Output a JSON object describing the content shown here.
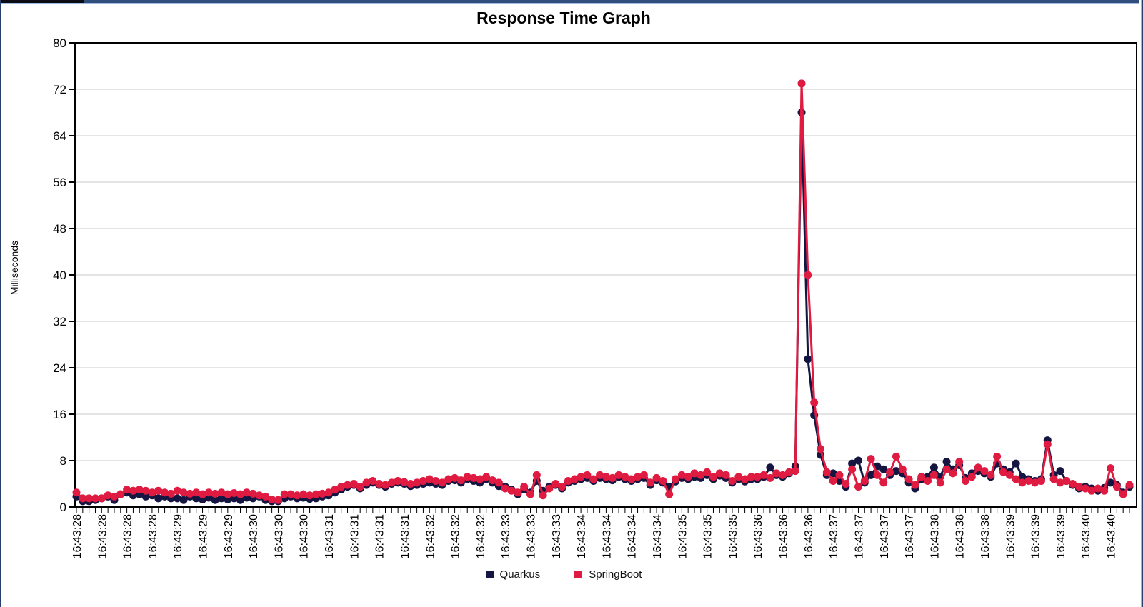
{
  "window": {
    "title": "Response Time Graph"
  },
  "chart_data": {
    "type": "line",
    "title": "Response Time Graph",
    "xlabel": "",
    "ylabel": "Milliseconds",
    "ylim": [
      0,
      80
    ],
    "ytick_step": 8,
    "grid": "horizontal",
    "legend_position": "bottom",
    "points_per_xlabel": 4,
    "x_tick_labels": [
      "16:43:28",
      "16:43:28",
      "16:43:28",
      "16:43:28",
      "16:43:29",
      "16:43:29",
      "16:43:29",
      "16:43:30",
      "16:43:30",
      "16:43:30",
      "16:43:31",
      "16:43:31",
      "16:43:31",
      "16:43:31",
      "16:43:32",
      "16:43:32",
      "16:43:32",
      "16:43:33",
      "16:43:33",
      "16:43:33",
      "16:43:34",
      "16:43:34",
      "16:43:34",
      "16:43:34",
      "16:43:35",
      "16:43:35",
      "16:43:35",
      "16:43:36",
      "16:43:36",
      "16:43:36",
      "16:43:37",
      "16:43:37",
      "16:43:37",
      "16:43:37",
      "16:43:38",
      "16:43:38",
      "16:43:38",
      "16:43:39",
      "16:43:39",
      "16:43:39",
      "16:43:40",
      "16:43:40"
    ],
    "series": [
      {
        "name": "Quarkus",
        "color": "#151542",
        "values": [
          1.8,
          1,
          1,
          1.2,
          1.5,
          1.8,
          1.2,
          2.2,
          2.5,
          2,
          2.2,
          1.8,
          2,
          1.5,
          1.8,
          1.5,
          1.5,
          1.2,
          1.8,
          1.5,
          1.3,
          1.6,
          1.2,
          1.5,
          1.3,
          1.5,
          1.2,
          1.6,
          1.5,
          1.8,
          1.2,
          1,
          1,
          1.5,
          1.8,
          1.5,
          1.6,
          1.4,
          1.5,
          1.8,
          2,
          2.5,
          3,
          3.5,
          3.8,
          3.2,
          3.8,
          4.2,
          3.8,
          3.5,
          4,
          4.2,
          4,
          3.6,
          3.8,
          4,
          4.2,
          4,
          3.8,
          4.5,
          4.6,
          4.2,
          4.8,
          4.5,
          4.2,
          4.8,
          4.2,
          3.6,
          3.5,
          3,
          2.2,
          3,
          2.5,
          4.5,
          2.8,
          3.5,
          3.8,
          3.2,
          4.2,
          4.5,
          4.8,
          5,
          4.5,
          5,
          4.8,
          4.6,
          5.2,
          4.8,
          4.5,
          4.8,
          5,
          3.8,
          4.6,
          4.2,
          3.5,
          4.4,
          5,
          4.8,
          5.2,
          5,
          5.5,
          4.8,
          5.4,
          5,
          4.2,
          4.8,
          4.4,
          4.8,
          4.8,
          5.2,
          6.8,
          5.5,
          5.2,
          5.8,
          7,
          68,
          25.5,
          15.8,
          9,
          5.5,
          5.8,
          4.5,
          3.5,
          7.5,
          8,
          4.2,
          5.5,
          7,
          6.5,
          5.5,
          6.2,
          5.8,
          4.2,
          3.2,
          4.8,
          5.2,
          6.8,
          5.2,
          7.8,
          6.5,
          7.2,
          5,
          5.8,
          6.2,
          5.8,
          5.2,
          7.5,
          6.5,
          6,
          7.5,
          5.2,
          4.8,
          4.5,
          4.8,
          11.5,
          5.5,
          6.2,
          4.5,
          3.8,
          3.2,
          3.5,
          3.2,
          2.8,
          3.3,
          4.2,
          3.8,
          2.5,
          3.5
        ]
      },
      {
        "name": "SpringBoot",
        "color": "#e01b41",
        "values": [
          2.5,
          1.5,
          1.5,
          1.5,
          1.5,
          2,
          1.8,
          2.2,
          3,
          2.8,
          3,
          2.8,
          2.5,
          2.8,
          2.5,
          2.3,
          2.8,
          2.5,
          2.3,
          2.5,
          2.2,
          2.5,
          2.3,
          2.5,
          2.2,
          2.4,
          2.2,
          2.5,
          2.3,
          2,
          1.8,
          1.3,
          1.2,
          2.2,
          2.2,
          2,
          2.2,
          2,
          2.2,
          2.3,
          2.5,
          3,
          3.5,
          3.8,
          4,
          3.5,
          4.2,
          4.5,
          4,
          3.8,
          4.2,
          4.5,
          4.3,
          4,
          4.2,
          4.5,
          4.8,
          4.5,
          4.2,
          4.8,
          5,
          4.6,
          5.2,
          5,
          4.8,
          5.2,
          4.6,
          4.2,
          3.2,
          2.8,
          2.5,
          3.5,
          2.2,
          5.5,
          2,
          3.2,
          4,
          3.5,
          4.5,
          4.8,
          5.2,
          5.5,
          4.8,
          5.5,
          5.2,
          5,
          5.5,
          5.2,
          4.8,
          5.2,
          5.5,
          4.2,
          5,
          4.5,
          2.2,
          4.8,
          5.5,
          5.2,
          5.8,
          5.5,
          6,
          5.2,
          5.8,
          5.5,
          4.5,
          5.2,
          4.8,
          5.2,
          5.2,
          5.5,
          5,
          5.8,
          5.5,
          6,
          6.2,
          73,
          40,
          18,
          10,
          6,
          4.5,
          5.5,
          4,
          6.5,
          3.5,
          4.5,
          8.3,
          5.5,
          4.2,
          6,
          8.7,
          6.5,
          4.8,
          3.8,
          5.2,
          4.5,
          5.5,
          4.2,
          6.5,
          5.8,
          7.8,
          4.5,
          5.2,
          6.8,
          6.2,
          5.5,
          8.7,
          6,
          5.5,
          4.8,
          4.2,
          4.5,
          4.2,
          4.5,
          10.8,
          4.8,
          4.2,
          4.5,
          4,
          3.5,
          3.2,
          2.8,
          3.2,
          2.8,
          6.7,
          3.5,
          2.2,
          3.8
        ]
      }
    ]
  },
  "style": {
    "grid_color": "#c8c8c8",
    "axis_color": "#000000"
  }
}
